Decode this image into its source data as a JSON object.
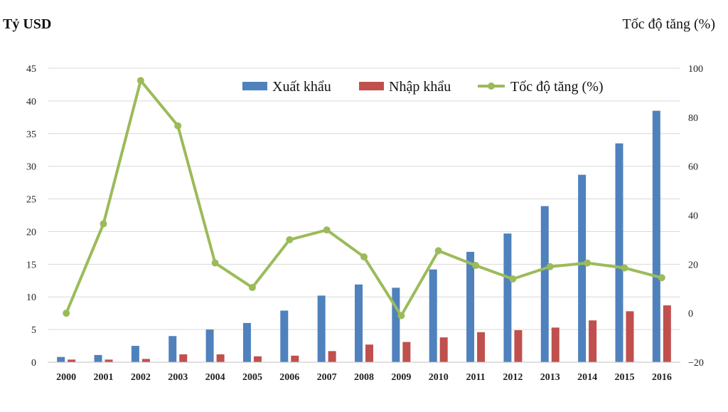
{
  "chart_data": {
    "type": "bar",
    "left_unit_label": "Tỷ USD",
    "right_unit_label": "Tốc độ tăng (%)",
    "categories": [
      "2000",
      "2001",
      "2002",
      "2003",
      "2004",
      "2005",
      "2006",
      "2007",
      "2008",
      "2009",
      "2010",
      "2011",
      "2012",
      "2013",
      "2014",
      "2015",
      "2016"
    ],
    "series": [
      {
        "name": "Xuất khẩu",
        "kind": "bar",
        "axis": "left",
        "color": "#4F81BD",
        "values": [
          0.8,
          1.1,
          2.5,
          4.0,
          5.0,
          6.0,
          7.9,
          10.2,
          11.9,
          11.4,
          14.2,
          16.9,
          19.7,
          23.9,
          28.7,
          33.5,
          38.5
        ]
      },
      {
        "name": "Nhập khẩu",
        "kind": "bar",
        "axis": "left",
        "color": "#C0504D",
        "values": [
          0.4,
          0.4,
          0.5,
          1.2,
          1.2,
          0.9,
          1.0,
          1.7,
          2.7,
          3.1,
          3.8,
          4.6,
          4.9,
          5.3,
          6.4,
          7.8,
          8.7
        ]
      },
      {
        "name": "Tốc độ tăng (%)",
        "kind": "line",
        "axis": "right",
        "color": "#9BBB59",
        "values": [
          0,
          36.5,
          95,
          76.5,
          20.5,
          10.5,
          30,
          34,
          23,
          -1,
          25.5,
          19.5,
          14,
          19,
          20.5,
          18.5,
          14.5
        ]
      }
    ],
    "ylim_left": [
      0,
      45
    ],
    "yticks_left": [
      0,
      5,
      10,
      15,
      20,
      25,
      30,
      35,
      40,
      45
    ],
    "ylim_right": [
      -20,
      100
    ],
    "yticks_right": [
      -20,
      0,
      20,
      40,
      60,
      80,
      100
    ],
    "grid": true,
    "legend_position": "top-right"
  }
}
